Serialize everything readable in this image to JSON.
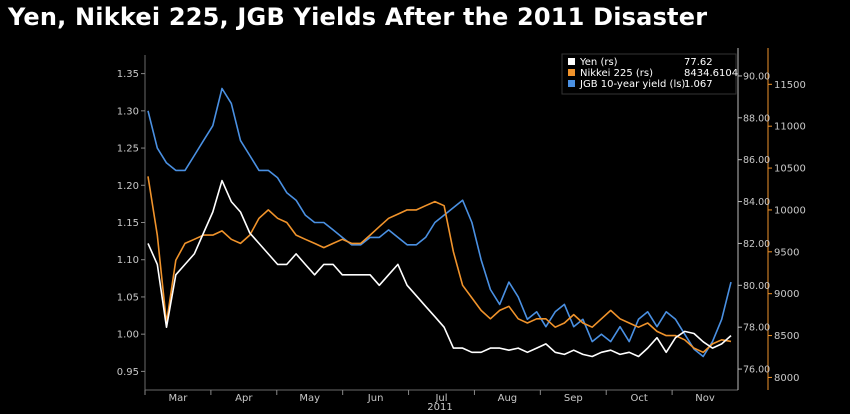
{
  "title": "Yen, Nikkei 225, JGB Yields After the 2011 Disaster",
  "chart_data": {
    "type": "line",
    "year_label": "2011",
    "months": [
      "Mar",
      "Apr",
      "May",
      "Jun",
      "Jul",
      "Aug",
      "Sep",
      "Oct",
      "Nov"
    ],
    "axes": {
      "jgb_left": {
        "ticks": [
          "1.35",
          "1.30",
          "1.25",
          "1.20",
          "1.15",
          "1.10",
          "1.05",
          "1.00",
          "0.95"
        ],
        "ylim": [
          0.925,
          1.375
        ]
      },
      "yen_right_inner": {
        "ticks": [
          "90.00",
          "88.00",
          "86.00",
          "84.00",
          "82.00",
          "80.00",
          "78.00",
          "76.00"
        ],
        "ylim": [
          75.0,
          91.0
        ],
        "color": "#ffffff"
      },
      "nikkei_right_outer": {
        "ticks": [
          "11500",
          "11000",
          "10500",
          "10000",
          "9500",
          "9000",
          "8500",
          "8000"
        ],
        "ylim": [
          7850,
          11850
        ],
        "color": "#f0932b"
      }
    },
    "legend": [
      {
        "name": "Yen (rs)",
        "value": "77.62",
        "color": "#ffffff"
      },
      {
        "name": "Nikkei 225 (rs)",
        "value": "8434.6104",
        "color": "#f0932b"
      },
      {
        "name": "JGB 10-year yield (ls)",
        "value": "1.067",
        "color": "#4a90e2"
      }
    ],
    "series": [
      {
        "name": "JGB 10-year yield (ls)",
        "axis": "jgb_left",
        "color": "#4a90e2",
        "values": [
          1.3,
          1.25,
          1.23,
          1.22,
          1.22,
          1.24,
          1.26,
          1.28,
          1.33,
          1.31,
          1.26,
          1.24,
          1.22,
          1.22,
          1.21,
          1.19,
          1.18,
          1.16,
          1.15,
          1.15,
          1.14,
          1.13,
          1.12,
          1.12,
          1.13,
          1.13,
          1.14,
          1.13,
          1.12,
          1.12,
          1.13,
          1.15,
          1.16,
          1.17,
          1.18,
          1.15,
          1.1,
          1.06,
          1.04,
          1.07,
          1.05,
          1.02,
          1.03,
          1.01,
          1.03,
          1.04,
          1.01,
          1.02,
          0.99,
          1.0,
          0.99,
          1.01,
          0.99,
          1.02,
          1.03,
          1.01,
          1.03,
          1.02,
          1.0,
          0.98,
          0.97,
          0.99,
          1.02,
          1.07
        ]
      },
      {
        "name": "Nikkei 225 (rs)",
        "axis": "nikkei_right_outer",
        "color": "#f0932b",
        "values": [
          10400,
          9700,
          8650,
          9400,
          9600,
          9650,
          9700,
          9700,
          9750,
          9650,
          9600,
          9700,
          9900,
          10000,
          9900,
          9850,
          9700,
          9650,
          9600,
          9550,
          9600,
          9650,
          9600,
          9600,
          9700,
          9800,
          9900,
          9950,
          10000,
          10000,
          10050,
          10100,
          10050,
          9500,
          9100,
          8950,
          8800,
          8700,
          8800,
          8850,
          8700,
          8650,
          8700,
          8700,
          8600,
          8650,
          8750,
          8650,
          8600,
          8700,
          8800,
          8700,
          8650,
          8600,
          8650,
          8550,
          8500,
          8500,
          8450,
          8350,
          8300,
          8400,
          8450,
          8430
        ]
      },
      {
        "name": "Yen (rs)",
        "axis": "yen_right_inner",
        "color": "#ffffff",
        "values": [
          82.0,
          81.0,
          78.0,
          80.5,
          81.0,
          81.5,
          82.5,
          83.5,
          85.0,
          84.0,
          83.5,
          82.5,
          82.0,
          81.5,
          81.0,
          81.0,
          81.5,
          81.0,
          80.5,
          81.0,
          81.0,
          80.5,
          80.5,
          80.5,
          80.5,
          80.0,
          80.5,
          81.0,
          80.0,
          79.5,
          79.0,
          78.5,
          78.0,
          77.0,
          77.0,
          76.8,
          76.8,
          77.0,
          77.0,
          76.9,
          77.0,
          76.8,
          77.0,
          77.2,
          76.8,
          76.7,
          76.9,
          76.7,
          76.6,
          76.8,
          76.9,
          76.7,
          76.8,
          76.6,
          77.0,
          77.5,
          76.8,
          77.5,
          77.8,
          77.7,
          77.3,
          77.0,
          77.2,
          77.6
        ]
      }
    ]
  }
}
